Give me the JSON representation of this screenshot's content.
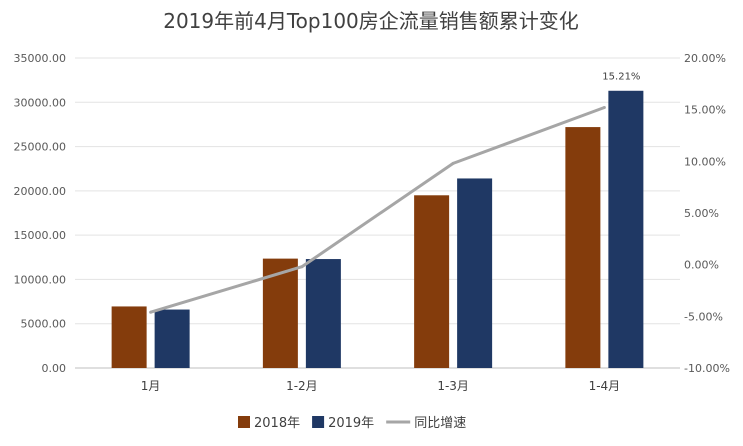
{
  "chart_data": {
    "type": "bar",
    "title": "2019年前4月Top100房企流量销售额累计变化",
    "categories": [
      "1月",
      "1-2月",
      "1-3月",
      "1-4月"
    ],
    "series": [
      {
        "name": "2018年",
        "type": "bar",
        "axis": "left",
        "color": "#843C0C",
        "values": [
          6950,
          12350,
          19500,
          27200
        ]
      },
      {
        "name": "2019年",
        "type": "bar",
        "axis": "left",
        "color": "#1F3864",
        "values": [
          6600,
          12300,
          21400,
          31300
        ]
      },
      {
        "name": "同比增速",
        "type": "line",
        "axis": "right",
        "color": "#A6A6A6",
        "values": [
          -4.6,
          -0.2,
          9.8,
          15.21
        ]
      }
    ],
    "y_left": {
      "min": 0,
      "max": 35000,
      "step": 5000,
      "ticks": [
        "0.00",
        "5000.00",
        "10000.00",
        "15000.00",
        "20000.00",
        "25000.00",
        "30000.00",
        "35000.00"
      ]
    },
    "y_right": {
      "min": -10,
      "max": 20,
      "step": 5,
      "ticks": [
        "-10.00%",
        "-5.00%",
        "0.00%",
        "5.00%",
        "10.00%",
        "15.00%",
        "20.00%"
      ]
    },
    "data_labels": [
      {
        "series": "同比增速",
        "index": 3,
        "text": "15.21%"
      }
    ],
    "grid": true,
    "legend_position": "bottom"
  }
}
